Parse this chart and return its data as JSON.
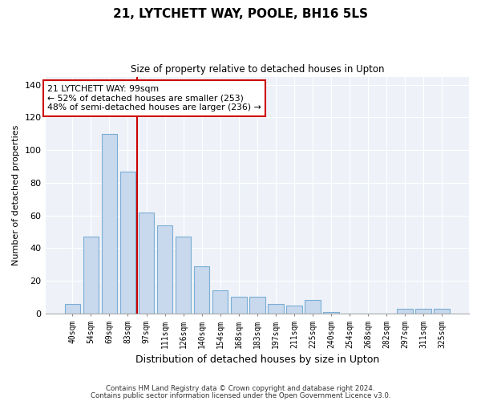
{
  "title": "21, LYTCHETT WAY, POOLE, BH16 5LS",
  "subtitle": "Size of property relative to detached houses in Upton",
  "xlabel": "Distribution of detached houses by size in Upton",
  "ylabel": "Number of detached properties",
  "bar_color": "#c8d8ed",
  "bar_edge_color": "#7aaed4",
  "background_color": "#eef2f8",
  "fig_background_color": "#ffffff",
  "grid_color": "#ffffff",
  "categories": [
    "40sqm",
    "54sqm",
    "69sqm",
    "83sqm",
    "97sqm",
    "111sqm",
    "126sqm",
    "140sqm",
    "154sqm",
    "168sqm",
    "183sqm",
    "197sqm",
    "211sqm",
    "225sqm",
    "240sqm",
    "254sqm",
    "268sqm",
    "282sqm",
    "297sqm",
    "311sqm",
    "325sqm"
  ],
  "values": [
    6,
    47,
    110,
    87,
    62,
    54,
    47,
    29,
    14,
    10,
    10,
    6,
    5,
    8,
    1,
    0,
    0,
    0,
    3,
    3,
    3
  ],
  "ylim": [
    0,
    145
  ],
  "yticks": [
    0,
    20,
    40,
    60,
    80,
    100,
    120,
    140
  ],
  "vline_position": 3.5,
  "vline_color": "#cc0000",
  "annotation_text": "21 LYTCHETT WAY: 99sqm\n← 52% of detached houses are smaller (253)\n48% of semi-detached houses are larger (236) →",
  "annotation_box_color": "#ffffff",
  "annotation_box_edge_color": "#cc0000",
  "footer1": "Contains HM Land Registry data © Crown copyright and database right 2024.",
  "footer2": "Contains public sector information licensed under the Open Government Licence v3.0."
}
